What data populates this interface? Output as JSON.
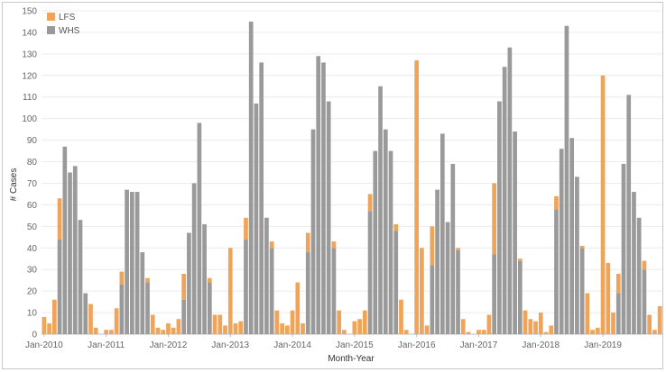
{
  "chart_data": {
    "type": "bar",
    "stacked": true,
    "title": "",
    "xlabel": "Month-Year",
    "ylabel": "# Cases",
    "ylim": [
      0,
      150
    ],
    "yticks": [
      0,
      10,
      20,
      30,
      40,
      50,
      60,
      70,
      80,
      90,
      100,
      110,
      120,
      130,
      140,
      150
    ],
    "grid": true,
    "legend_position": "top-left",
    "x_tick_labels": [
      "Jan-2010",
      "Jan-2011",
      "Jan-2012",
      "Jan-2013",
      "Jan-2014",
      "Jan-2015",
      "Jan-2016",
      "Jan-2017",
      "Jan-2018",
      "Jan-2019"
    ],
    "categories": [
      "Jan-2010",
      "Feb-2010",
      "Mar-2010",
      "Apr-2010",
      "May-2010",
      "Jun-2010",
      "Jul-2010",
      "Aug-2010",
      "Sep-2010",
      "Oct-2010",
      "Nov-2010",
      "Dec-2010",
      "Jan-2011",
      "Feb-2011",
      "Mar-2011",
      "Apr-2011",
      "May-2011",
      "Jun-2011",
      "Jul-2011",
      "Aug-2011",
      "Sep-2011",
      "Oct-2011",
      "Nov-2011",
      "Dec-2011",
      "Jan-2012",
      "Feb-2012",
      "Mar-2012",
      "Apr-2012",
      "May-2012",
      "Jun-2012",
      "Jul-2012",
      "Aug-2012",
      "Sep-2012",
      "Oct-2012",
      "Nov-2012",
      "Dec-2012",
      "Jan-2013",
      "Feb-2013",
      "Mar-2013",
      "Apr-2013",
      "May-2013",
      "Jun-2013",
      "Jul-2013",
      "Aug-2013",
      "Sep-2013",
      "Oct-2013",
      "Nov-2013",
      "Dec-2013",
      "Jan-2014",
      "Feb-2014",
      "Mar-2014",
      "Apr-2014",
      "May-2014",
      "Jun-2014",
      "Jul-2014",
      "Aug-2014",
      "Sep-2014",
      "Oct-2014",
      "Nov-2014",
      "Dec-2014",
      "Jan-2015",
      "Feb-2015",
      "Mar-2015",
      "Apr-2015",
      "May-2015",
      "Jun-2015",
      "Jul-2015",
      "Aug-2015",
      "Sep-2015",
      "Oct-2015",
      "Nov-2015",
      "Dec-2015",
      "Jan-2016",
      "Feb-2016",
      "Mar-2016",
      "Apr-2016",
      "May-2016",
      "Jun-2016",
      "Jul-2016",
      "Aug-2016",
      "Sep-2016",
      "Oct-2016",
      "Nov-2016",
      "Dec-2016",
      "Jan-2017",
      "Feb-2017",
      "Mar-2017",
      "Apr-2017",
      "May-2017",
      "Jun-2017",
      "Jul-2017",
      "Aug-2017",
      "Sep-2017",
      "Oct-2017",
      "Nov-2017",
      "Dec-2017",
      "Jan-2018",
      "Feb-2018",
      "Mar-2018",
      "Apr-2018",
      "May-2018",
      "Jun-2018",
      "Jul-2018",
      "Aug-2018",
      "Sep-2018",
      "Oct-2018",
      "Nov-2018",
      "Dec-2018",
      "Jan-2019",
      "Feb-2019",
      "Mar-2019",
      "Apr-2019",
      "May-2019",
      "Jun-2019",
      "Jul-2019",
      "Aug-2019",
      "Sep-2019",
      "Oct-2019",
      "Nov-2019",
      "Dec-2019"
    ],
    "series": [
      {
        "name": "WHS",
        "color": "#9a9a9a",
        "values": [
          0,
          0,
          0,
          44,
          87,
          75,
          78,
          53,
          19,
          0,
          0,
          0,
          0,
          0,
          0,
          23,
          67,
          66,
          66,
          38,
          24,
          0,
          0,
          0,
          0,
          0,
          0,
          16,
          47,
          70,
          98,
          51,
          24,
          0,
          0,
          0,
          0,
          0,
          0,
          44,
          145,
          107,
          126,
          54,
          40,
          0,
          0,
          0,
          0,
          0,
          0,
          38,
          95,
          129,
          126,
          108,
          40,
          0,
          0,
          0,
          0,
          0,
          0,
          57,
          85,
          115,
          95,
          85,
          48,
          0,
          0,
          0,
          0,
          0,
          0,
          32,
          67,
          93,
          52,
          79,
          39,
          0,
          0,
          0,
          0,
          0,
          0,
          37,
          108,
          124,
          133,
          94,
          34,
          0,
          0,
          0,
          0,
          0,
          0,
          58,
          86,
          143,
          91,
          73,
          40,
          0,
          0,
          0,
          0,
          0,
          0,
          19,
          79,
          111,
          66,
          54,
          30,
          0,
          0,
          0
        ]
      },
      {
        "name": "LFS",
        "color": "#f0a458",
        "values": [
          8,
          5,
          16,
          19,
          0,
          0,
          0,
          0,
          0,
          14,
          3,
          0,
          2,
          2,
          12,
          6,
          0,
          0,
          0,
          0,
          2,
          9,
          3,
          2,
          5,
          3,
          7,
          12,
          0,
          0,
          0,
          0,
          2,
          9,
          9,
          4,
          40,
          5,
          6,
          10,
          0,
          0,
          0,
          0,
          3,
          11,
          5,
          4,
          11,
          24,
          5,
          9,
          0,
          0,
          0,
          0,
          3,
          11,
          2,
          0,
          6,
          7,
          11,
          8,
          0,
          0,
          0,
          0,
          3,
          16,
          2,
          0,
          127,
          40,
          4,
          18,
          0,
          0,
          0,
          0,
          1,
          7,
          1,
          0,
          2,
          2,
          9,
          33,
          0,
          0,
          0,
          0,
          1,
          11,
          7,
          6,
          10,
          1,
          4,
          6,
          0,
          0,
          0,
          0,
          1,
          19,
          2,
          3,
          120,
          33,
          10,
          9,
          0,
          0,
          0,
          0,
          4,
          9,
          2,
          13
        ]
      }
    ]
  }
}
